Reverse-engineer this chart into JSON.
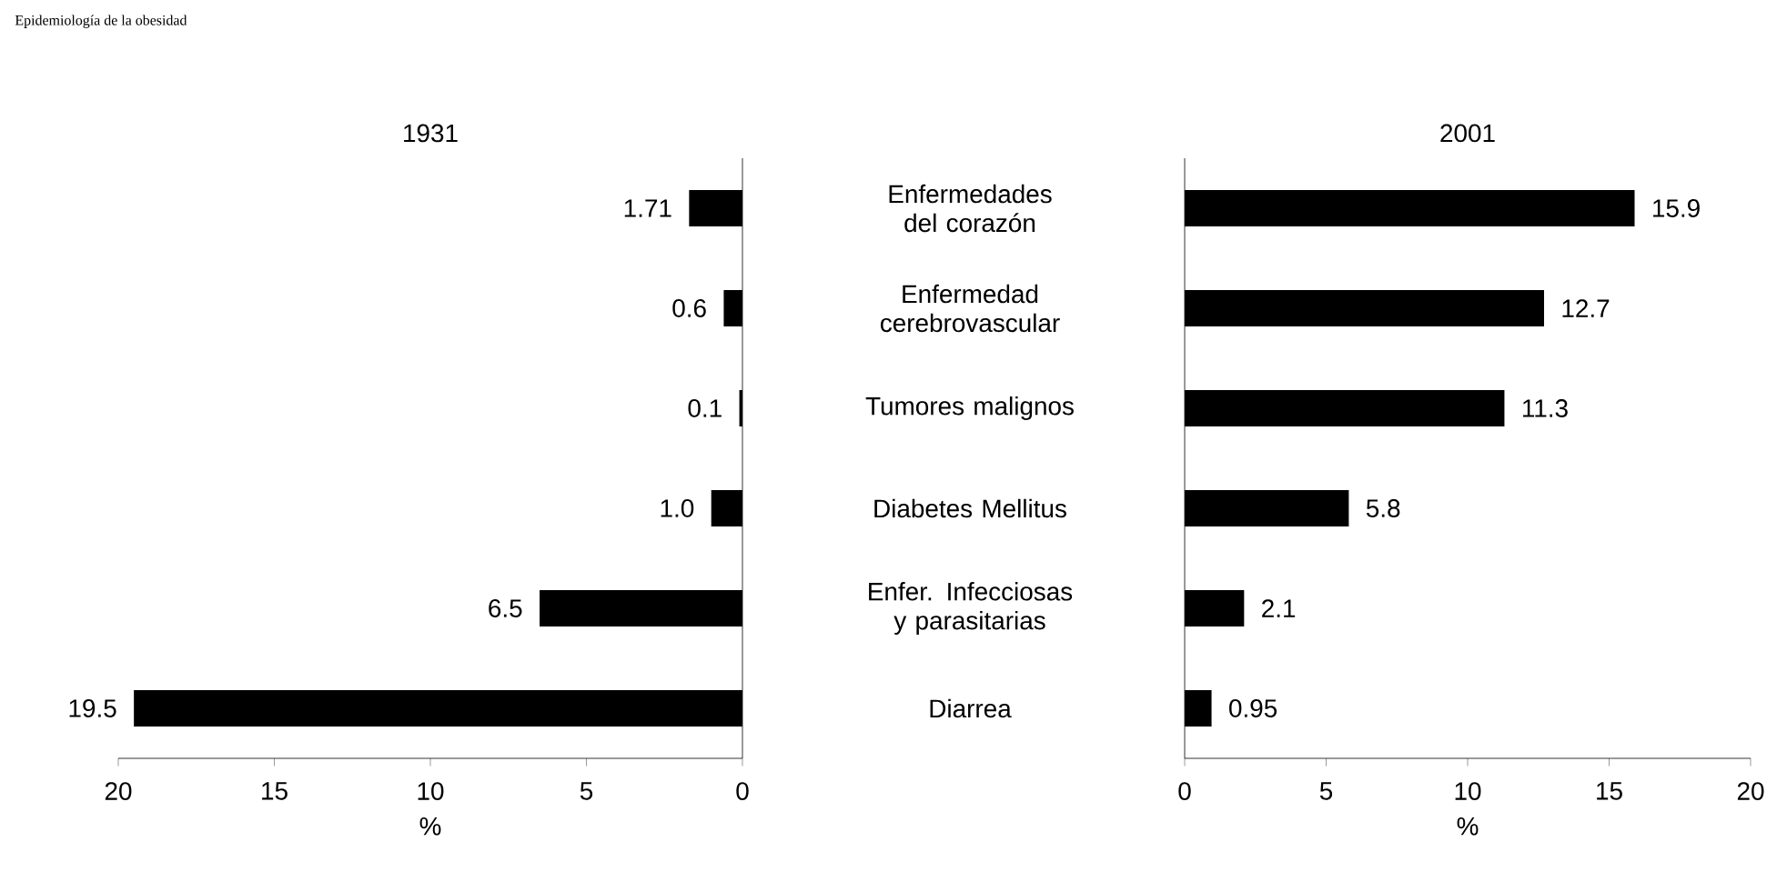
{
  "chart_data": [
    {
      "type": "bar",
      "orientation": "horizontal",
      "title": "1931",
      "annotations": [
        "Epidemiología de la obesidad"
      ],
      "categories": [
        null,
        null,
        null,
        null,
        null,
        null
      ],
      "values": [
        1.71,
        0.6,
        0.1,
        1.0,
        6.5,
        19.5
      ],
      "value_labels": [
        "1.71",
        "0.6",
        "0.1",
        "1.0",
        "6.5",
        "19.5"
      ],
      "color": "#000000",
      "xlim": [
        20,
        0
      ],
      "xticks": [
        20,
        15,
        10,
        5,
        0
      ],
      "xlabel": "%"
    },
    {
      "type": "bar",
      "orientation": "horizontal",
      "title": "2001",
      "categories": [
        "Enfermedades del corazón",
        "Enfermedad cerebrovascular",
        "Tumores malignos",
        "Diabetes Mellitus",
        "Enfer. Infecciosas y parasitarias",
        "Diarrea"
      ],
      "values": [
        15.9,
        12.7,
        11.3,
        5.8,
        2.1,
        0.95
      ],
      "value_labels": [
        "15.9",
        "12.7",
        "11.3",
        "5.8",
        "2.1",
        "0.95"
      ],
      "color": "#000000",
      "xlim": [
        0,
        20
      ],
      "xticks": [
        0,
        5,
        10,
        15,
        20
      ],
      "xlabel": "%"
    }
  ]
}
